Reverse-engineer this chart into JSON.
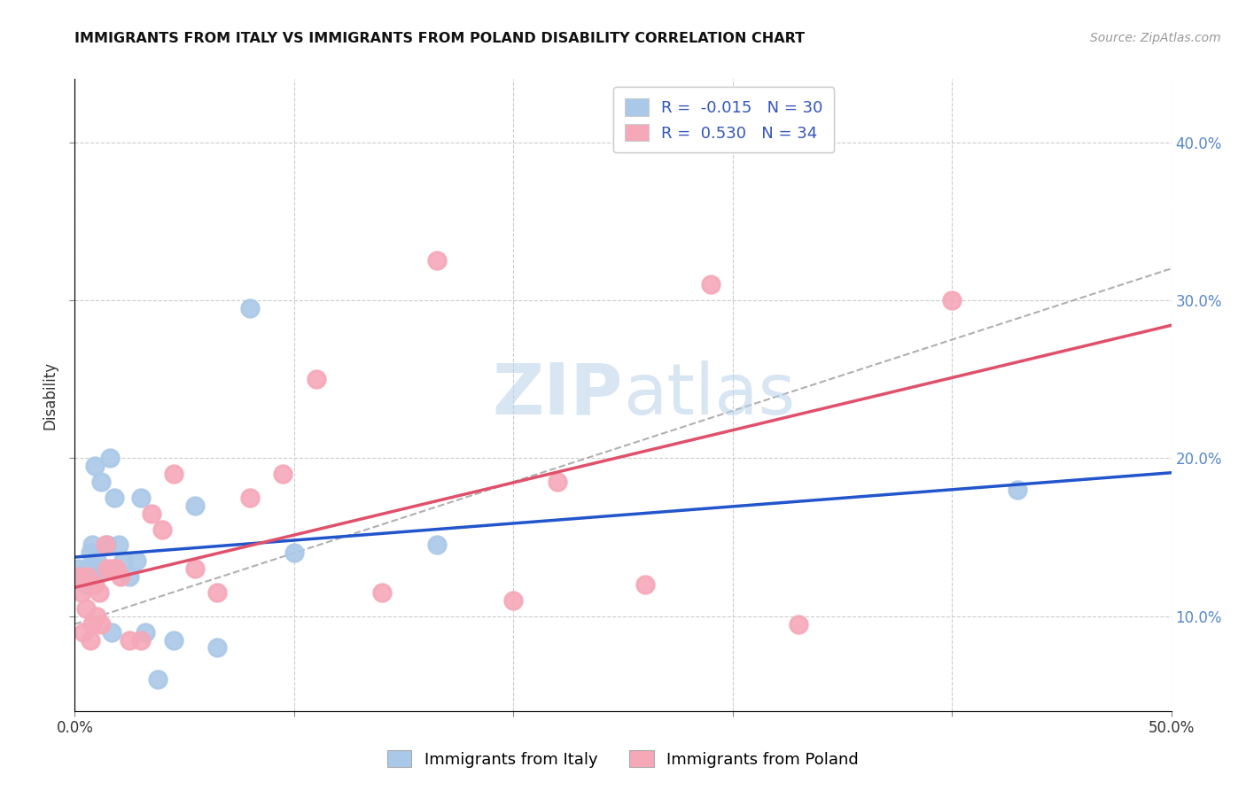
{
  "title": "IMMIGRANTS FROM ITALY VS IMMIGRANTS FROM POLAND DISABILITY CORRELATION CHART",
  "source": "Source: ZipAtlas.com",
  "xlabel": "",
  "ylabel": "Disability",
  "xlim": [
    0.0,
    0.5
  ],
  "ylim": [
    0.04,
    0.44
  ],
  "xticks": [
    0.0,
    0.1,
    0.2,
    0.3,
    0.4,
    0.5
  ],
  "yticks": [
    0.1,
    0.2,
    0.3,
    0.4
  ],
  "xtick_labels_bottom": [
    "0.0%",
    "",
    "",
    "",
    "",
    "50.0%"
  ],
  "ytick_labels_right": [
    "10.0%",
    "20.0%",
    "30.0%",
    "40.0%"
  ],
  "italy_R": -0.015,
  "italy_N": 30,
  "poland_R": 0.53,
  "poland_N": 34,
  "italy_color": "#aac8e8",
  "poland_color": "#f5a8b8",
  "italy_line_color": "#2255cc",
  "poland_line_color": "#e0506a",
  "background_color": "#ffffff",
  "watermark_zip": "ZIP",
  "watermark_atlas": "atlas",
  "legend_italy_label": "Immigrants from Italy",
  "legend_poland_label": "Immigrants from Poland",
  "italy_x": [
    0.002,
    0.004,
    0.005,
    0.006,
    0.007,
    0.007,
    0.008,
    0.009,
    0.01,
    0.011,
    0.012,
    0.013,
    0.015,
    0.016,
    0.017,
    0.018,
    0.02,
    0.022,
    0.025,
    0.028,
    0.03,
    0.032,
    0.038,
    0.045,
    0.055,
    0.065,
    0.08,
    0.1,
    0.165,
    0.43
  ],
  "italy_y": [
    0.13,
    0.125,
    0.12,
    0.13,
    0.14,
    0.125,
    0.145,
    0.195,
    0.135,
    0.13,
    0.185,
    0.13,
    0.145,
    0.2,
    0.09,
    0.175,
    0.145,
    0.135,
    0.125,
    0.135,
    0.175,
    0.09,
    0.06,
    0.085,
    0.17,
    0.08,
    0.295,
    0.14,
    0.145,
    0.18
  ],
  "poland_x": [
    0.002,
    0.003,
    0.004,
    0.005,
    0.006,
    0.007,
    0.008,
    0.009,
    0.01,
    0.011,
    0.012,
    0.014,
    0.015,
    0.017,
    0.019,
    0.021,
    0.025,
    0.03,
    0.035,
    0.04,
    0.045,
    0.055,
    0.065,
    0.08,
    0.095,
    0.11,
    0.14,
    0.165,
    0.2,
    0.22,
    0.26,
    0.29,
    0.33,
    0.4
  ],
  "poland_y": [
    0.125,
    0.115,
    0.09,
    0.105,
    0.125,
    0.085,
    0.095,
    0.12,
    0.1,
    0.115,
    0.095,
    0.145,
    0.13,
    0.13,
    0.13,
    0.125,
    0.085,
    0.085,
    0.165,
    0.155,
    0.19,
    0.13,
    0.115,
    0.175,
    0.19,
    0.25,
    0.115,
    0.325,
    0.11,
    0.185,
    0.12,
    0.31,
    0.095,
    0.3
  ]
}
